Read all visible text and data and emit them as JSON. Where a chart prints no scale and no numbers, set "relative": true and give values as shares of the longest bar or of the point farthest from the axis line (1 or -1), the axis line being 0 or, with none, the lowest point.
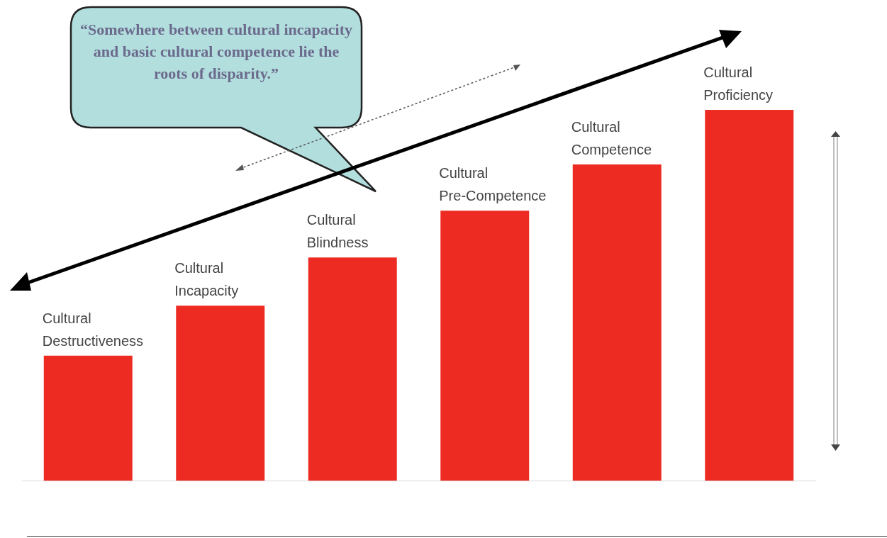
{
  "chart_data": {
    "type": "bar",
    "relative": true,
    "categories": [
      "Cultural Destructiveness",
      "Cultural Incapacity",
      "Cultural Blindness",
      "Cultural Pre-Competence",
      "Cultural Competence",
      "Cultural Proficiency"
    ],
    "values": [
      0.337,
      0.472,
      0.602,
      0.728,
      0.853,
      1
    ],
    "color": "#ee2b22",
    "annotations": [
      "“Somewhere between cultural incapacity and basic cultural competence lie the roots of disparity.”"
    ]
  }
}
